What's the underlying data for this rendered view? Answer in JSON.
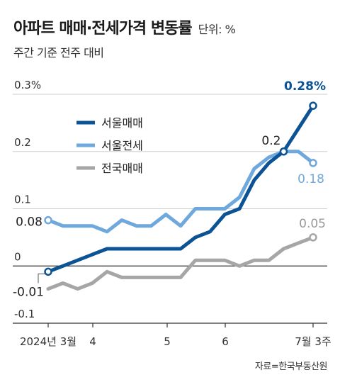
{
  "title": "아파트 매매·전세가격 변동률",
  "unit": "단위: %",
  "subtitle": "주간 기준 전주 대비",
  "source": "자료=한국부동산원",
  "colors": {
    "seoul_sale": "#0b5394",
    "seoul_jeonse": "#6fa8dc",
    "national_sale": "#a6a6a6",
    "grid": "#cfcfcf",
    "axis": "#333333"
  },
  "chart_data": {
    "type": "line",
    "x_tick_labels": [
      "2024년 3월",
      "4",
      "5",
      "6",
      "7월 3주"
    ],
    "y_tick_labels": [
      "0.3%",
      "0.2",
      "0.1",
      "0",
      "-0.1"
    ],
    "ylim": [
      -0.1,
      0.3
    ],
    "grid": true,
    "legend_position": "top-left",
    "series": [
      {
        "name": "서울매매",
        "color": "#0b5394",
        "values": [
          -0.01,
          0.0,
          0.01,
          0.02,
          0.03,
          0.03,
          0.03,
          0.03,
          0.03,
          0.03,
          0.05,
          0.06,
          0.09,
          0.1,
          0.15,
          0.18,
          0.2,
          0.24,
          0.28
        ]
      },
      {
        "name": "서울전세",
        "color": "#6fa8dc",
        "values": [
          0.08,
          0.07,
          0.07,
          0.07,
          0.06,
          0.08,
          0.07,
          0.07,
          0.09,
          0.07,
          0.1,
          0.1,
          0.1,
          0.12,
          0.17,
          0.19,
          0.2,
          0.2,
          0.18
        ]
      },
      {
        "name": "전국매매",
        "color": "#a6a6a6",
        "values": [
          -0.04,
          -0.03,
          -0.04,
          -0.03,
          -0.01,
          -0.02,
          -0.02,
          -0.02,
          -0.02,
          -0.02,
          0.01,
          0.01,
          0.01,
          0.0,
          0.01,
          0.01,
          0.03,
          0.04,
          0.05
        ]
      }
    ],
    "annotations": [
      {
        "text": "0.28%",
        "series": 0,
        "index": 18
      },
      {
        "text": "0.2",
        "series": 0,
        "index": 16
      },
      {
        "text": "-0.01",
        "series": 0,
        "index": 0
      },
      {
        "text": "0.08",
        "series": 1,
        "index": 0
      },
      {
        "text": "0.18",
        "series": 1,
        "index": 18
      },
      {
        "text": "0.05",
        "series": 2,
        "index": 18
      }
    ]
  }
}
